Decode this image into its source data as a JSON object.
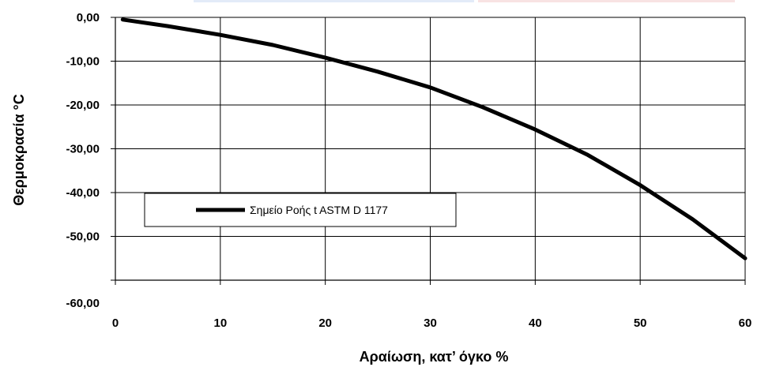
{
  "chart_data": {
    "type": "line",
    "xlabel": "Αραίωση, κατ’ όγκο %",
    "ylabel": "Θερμοκρασία °C",
    "xlim": [
      0,
      60
    ],
    "ylim": [
      -60,
      0
    ],
    "x_ticks": [
      "0",
      "10",
      "20",
      "30",
      "40",
      "50",
      "60"
    ],
    "y_ticks": [
      "0,00",
      "-10,00",
      "-20,00",
      "-30,00",
      "-40,00",
      "-50,00",
      "-60,00"
    ],
    "grid": true,
    "legend": "center-left",
    "series": [
      {
        "name": "Σημείο Ροής t ASTM D 1177",
        "color": "#000000",
        "x": [
          0.7,
          5,
          10,
          15,
          20,
          25,
          30,
          35,
          40,
          45,
          50,
          55,
          60
        ],
        "y": [
          -0.5,
          -2.0,
          -4.0,
          -6.3,
          -9.2,
          -12.4,
          -16.0,
          -20.5,
          -25.6,
          -31.4,
          -38.3,
          -46.1,
          -55.0
        ]
      }
    ]
  }
}
